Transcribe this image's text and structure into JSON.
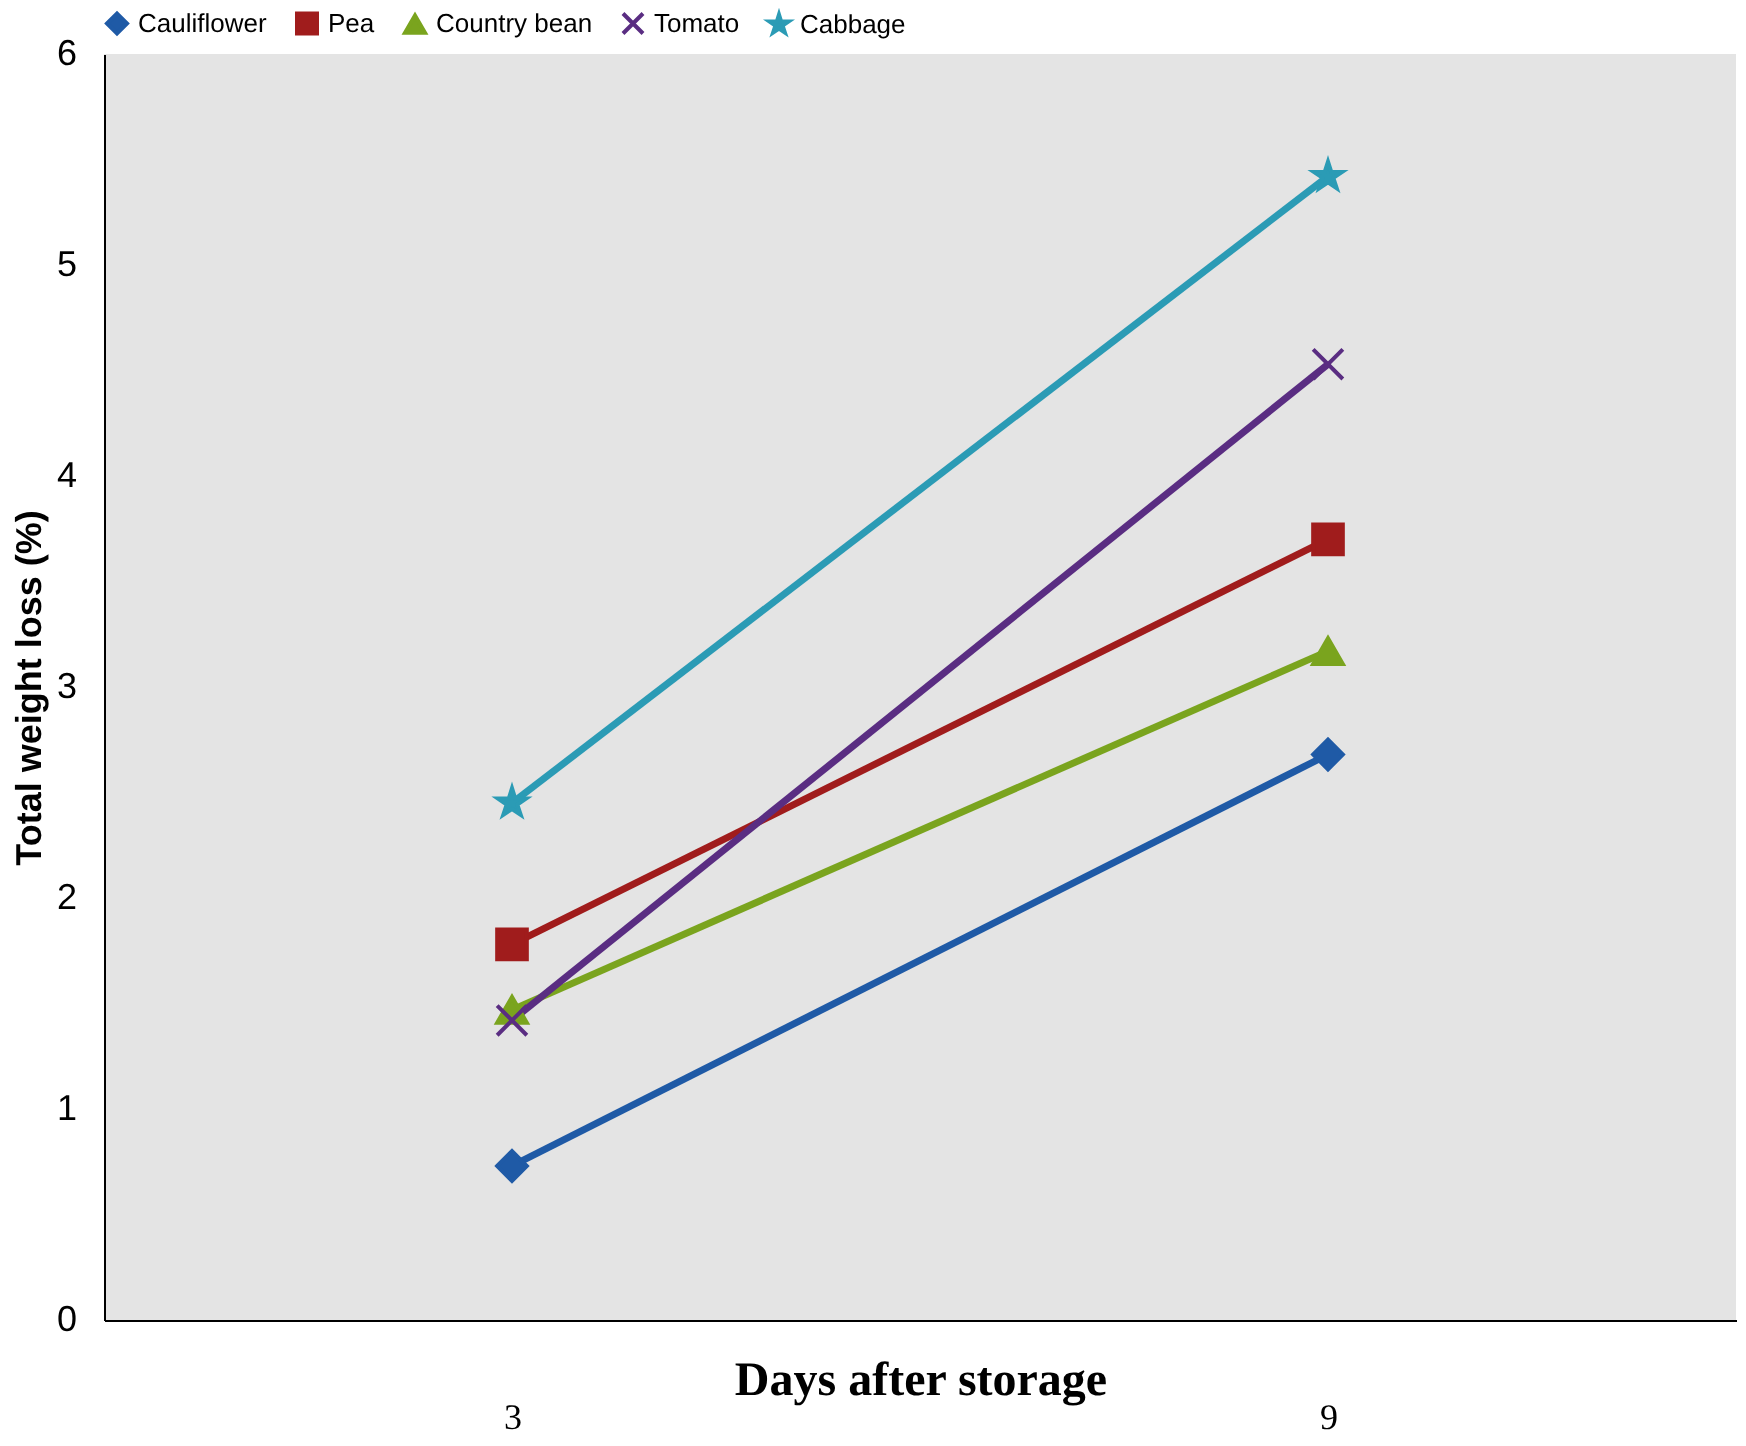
{
  "chart_data": {
    "type": "line",
    "xlabel": "Days after storage",
    "ylabel": "Total weight loss (%)",
    "categories": [
      "3",
      "9"
    ],
    "series": [
      {
        "name": "Cauliflower",
        "color": "#1f5aa6",
        "marker": "diamond",
        "values": [
          0.73,
          2.68
        ]
      },
      {
        "name": "Pea",
        "color": "#a01c1c",
        "marker": "square",
        "values": [
          1.78,
          3.7
        ]
      },
      {
        "name": "Country bean",
        "color": "#7aa41e",
        "marker": "triangle",
        "values": [
          1.47,
          3.17
        ]
      },
      {
        "name": "Tomato",
        "color": "#5a2d82",
        "marker": "cross",
        "values": [
          1.42,
          4.53
        ]
      },
      {
        "name": "Cabbage",
        "color": "#2b9bb5",
        "marker": "star",
        "values": [
          2.45,
          5.42
        ]
      }
    ],
    "ylim": [
      0,
      6
    ],
    "yticks": [
      0,
      1,
      2,
      3,
      4,
      5,
      6
    ],
    "grid": false,
    "legend": "top",
    "line_style": "solid"
  }
}
